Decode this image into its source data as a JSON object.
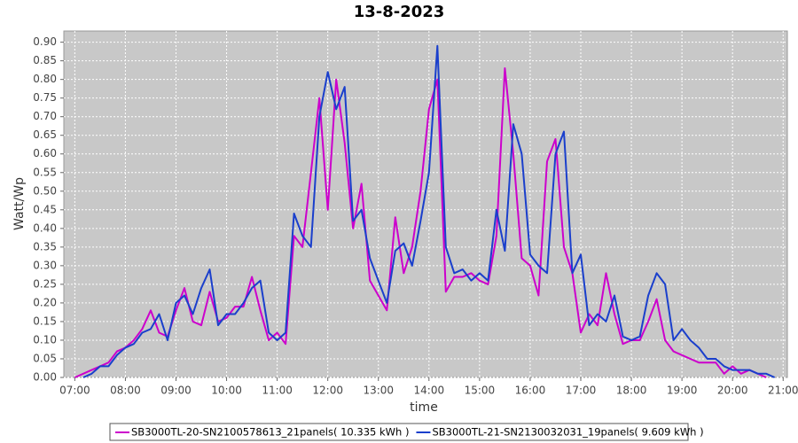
{
  "chart_data": {
    "type": "line",
    "title": "13-8-2023",
    "x_label": "time",
    "y_label": "Watt/Wp",
    "x": [
      "07:00",
      "07:10",
      "07:20",
      "07:30",
      "07:40",
      "07:50",
      "08:00",
      "08:10",
      "08:20",
      "08:30",
      "08:40",
      "08:50",
      "09:00",
      "09:10",
      "09:20",
      "09:30",
      "09:40",
      "09:50",
      "10:00",
      "10:10",
      "10:20",
      "10:30",
      "10:40",
      "10:50",
      "11:00",
      "11:10",
      "11:20",
      "11:30",
      "11:40",
      "11:50",
      "12:00",
      "12:10",
      "12:20",
      "12:30",
      "12:40",
      "12:50",
      "13:00",
      "13:10",
      "13:20",
      "13:30",
      "13:40",
      "13:50",
      "14:00",
      "14:10",
      "14:20",
      "14:30",
      "14:40",
      "14:50",
      "15:00",
      "15:10",
      "15:20",
      "15:30",
      "15:40",
      "15:50",
      "16:00",
      "16:10",
      "16:20",
      "16:30",
      "16:40",
      "16:50",
      "17:00",
      "17:10",
      "17:20",
      "17:30",
      "17:40",
      "17:50",
      "18:00",
      "18:10",
      "18:20",
      "18:30",
      "18:40",
      "18:50",
      "19:00",
      "19:10",
      "19:20",
      "19:30",
      "19:40",
      "19:50",
      "20:00",
      "20:10",
      "20:20",
      "20:30",
      "20:40",
      "20:50"
    ],
    "series": [
      {
        "name": "SB3000TL-20-SN2100578613_21panels( 10.335 kWh )",
        "color": "#cc00cc",
        "values": [
          0,
          0.01,
          0.02,
          0.03,
          0.04,
          0.07,
          0.08,
          0.1,
          0.13,
          0.18,
          0.12,
          0.11,
          0.18,
          0.24,
          0.15,
          0.14,
          0.23,
          0.15,
          0.16,
          0.19,
          0.19,
          0.27,
          0.18,
          0.1,
          0.12,
          0.09,
          0.38,
          0.35,
          0.55,
          0.75,
          0.45,
          0.8,
          0.63,
          0.4,
          0.52,
          0.26,
          0.22,
          0.18,
          0.43,
          0.28,
          0.35,
          0.5,
          0.72,
          0.8,
          0.23,
          0.27,
          0.27,
          0.28,
          0.26,
          0.25,
          0.38,
          0.83,
          0.6,
          0.32,
          0.3,
          0.22,
          0.58,
          0.64,
          0.35,
          0.28,
          0.12,
          0.17,
          0.14,
          0.28,
          0.17,
          0.09,
          0.1,
          0.1,
          0.15,
          0.21,
          0.1,
          0.07,
          0.06,
          0.05,
          0.04,
          0.04,
          0.04,
          0.01,
          0.03,
          0.01,
          0.02,
          0.01,
          0,
          null
        ]
      },
      {
        "name": "SB3000TL-21-SN2130032031_19panels( 9.609 kWh )",
        "color": "#1a3fcc",
        "values": [
          null,
          0,
          0.01,
          0.03,
          0.03,
          0.06,
          0.08,
          0.09,
          0.12,
          0.13,
          0.17,
          0.1,
          0.2,
          0.22,
          0.17,
          0.24,
          0.29,
          0.14,
          0.17,
          0.17,
          0.2,
          0.24,
          0.26,
          0.12,
          0.1,
          0.12,
          0.44,
          0.38,
          0.35,
          0.7,
          0.82,
          0.72,
          0.78,
          0.42,
          0.45,
          0.32,
          0.26,
          0.2,
          0.34,
          0.36,
          0.3,
          0.42,
          0.55,
          0.89,
          0.35,
          0.28,
          0.29,
          0.26,
          0.28,
          0.26,
          0.45,
          0.34,
          0.68,
          0.6,
          0.33,
          0.3,
          0.28,
          0.6,
          0.66,
          0.28,
          0.33,
          0.14,
          0.17,
          0.15,
          0.22,
          0.11,
          0.1,
          0.11,
          0.22,
          0.28,
          0.25,
          0.1,
          0.13,
          0.1,
          0.08,
          0.05,
          0.05,
          0.03,
          0.02,
          0.02,
          0.02,
          0.01,
          0.01,
          0
        ]
      }
    ],
    "xlim": [
      "06:47",
      "21:05"
    ],
    "xticks": [
      "07:00",
      "08:00",
      "09:00",
      "10:00",
      "11:00",
      "12:00",
      "13:00",
      "14:00",
      "15:00",
      "16:00",
      "17:00",
      "18:00",
      "19:00",
      "20:00",
      "21:00"
    ],
    "ylim": [
      0,
      0.93
    ],
    "yticks": [
      {
        "value": 0,
        "label": "0.00"
      },
      {
        "value": 0.05,
        "label": "0.05"
      },
      {
        "value": 0.1,
        "label": "0.10"
      },
      {
        "value": 0.15,
        "label": "0.15"
      },
      {
        "value": 0.2,
        "label": "0.20"
      },
      {
        "value": 0.25,
        "label": "0.25"
      },
      {
        "value": 0.3,
        "label": "0.30"
      },
      {
        "value": 0.35,
        "label": "0.35"
      },
      {
        "value": 0.4,
        "label": "0.40"
      },
      {
        "value": 0.45,
        "label": "0.45"
      },
      {
        "value": 0.5,
        "label": "0.50"
      },
      {
        "value": 0.55,
        "label": "0.55"
      },
      {
        "value": 0.6,
        "label": "0.60"
      },
      {
        "value": 0.65,
        "label": "0.65"
      },
      {
        "value": 0.7,
        "label": "0.70"
      },
      {
        "value": 0.75,
        "label": "0.75"
      },
      {
        "value": 0.8,
        "label": "0.80"
      },
      {
        "value": 0.85,
        "label": "0.85"
      },
      {
        "value": 0.9,
        "label": "0.90"
      }
    ],
    "grid": true,
    "legend": "bottom"
  }
}
